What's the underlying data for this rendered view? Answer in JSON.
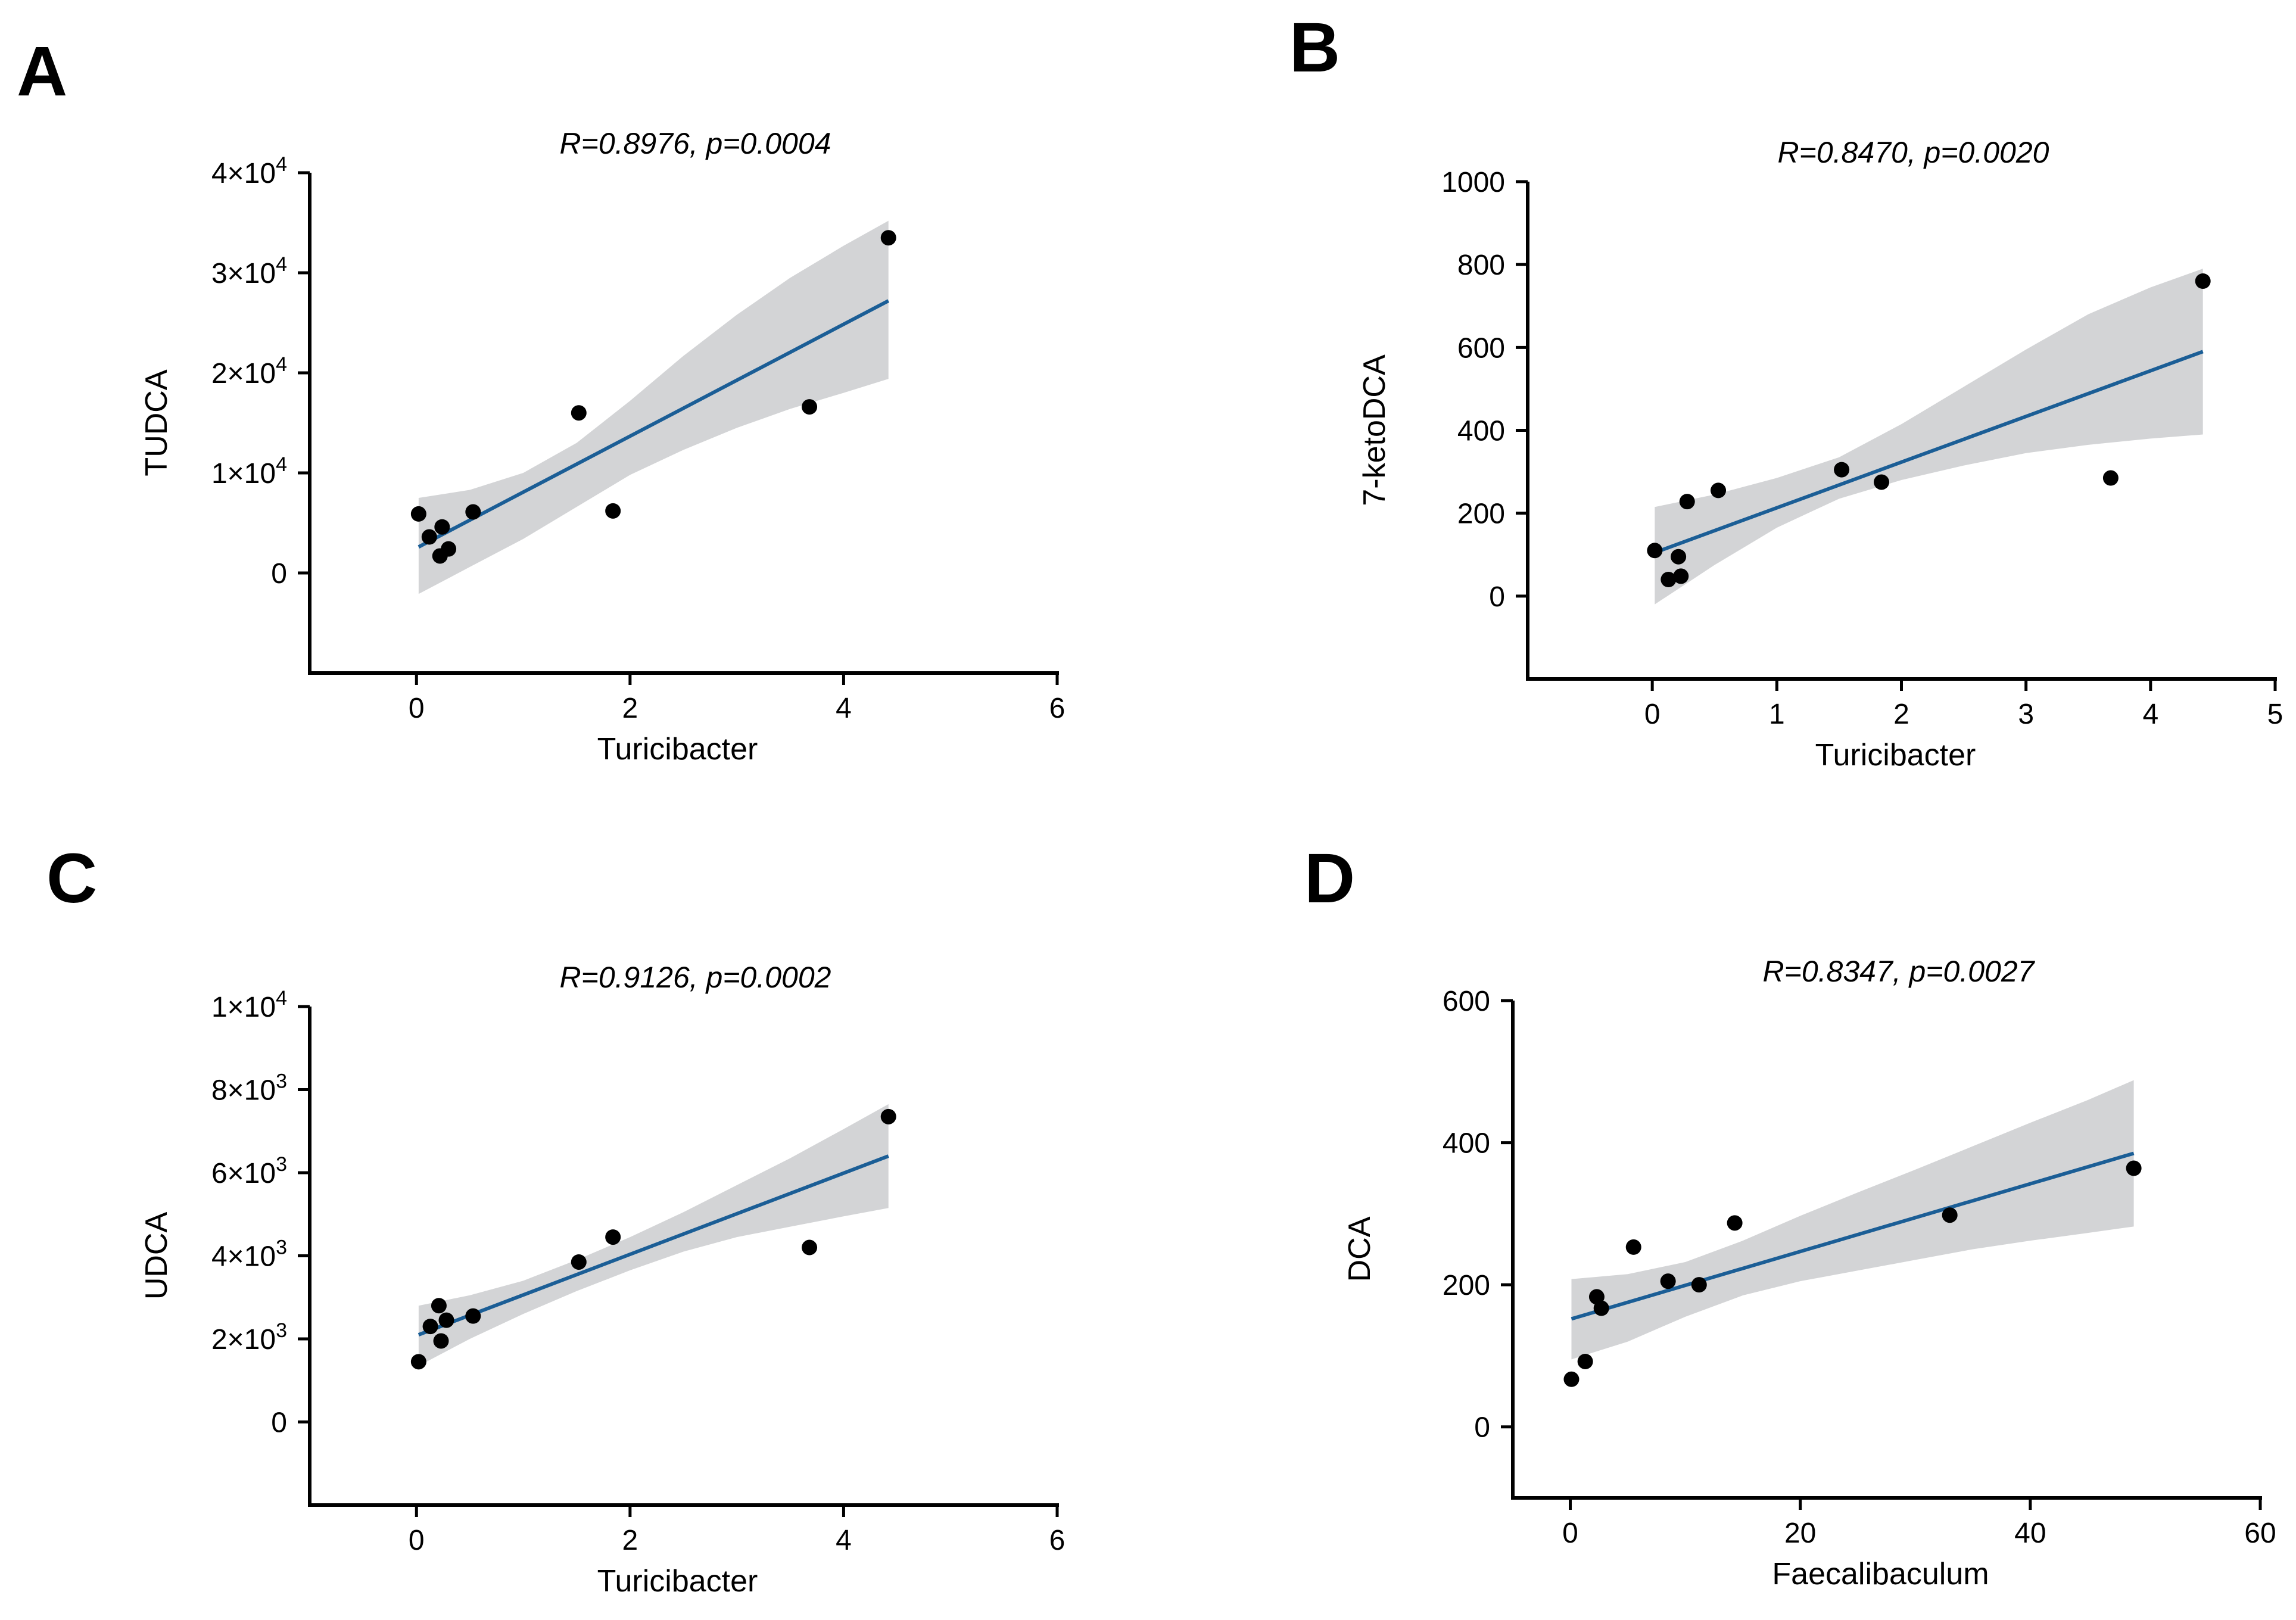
{
  "figure": {
    "panels": [
      "A",
      "B",
      "C",
      "D"
    ]
  },
  "colors": {
    "fit_line": "#1b5e96",
    "ci_band": "#d3d4d6",
    "points": "#000000",
    "axes": "#000000"
  },
  "chart_data": [
    {
      "type": "scatter",
      "panel": "A",
      "title": "R=0.8976, p=0.0004",
      "xlabel": "Turicibacter",
      "ylabel": "TUDCA",
      "xlim": [
        -1,
        6
      ],
      "ylim": [
        -10000,
        40000
      ],
      "xticks": [
        0,
        2,
        4,
        6
      ],
      "xtick_labels": [
        "0",
        "2",
        "4",
        "6"
      ],
      "yticks": [
        0,
        10000,
        20000,
        30000,
        40000
      ],
      "ytick_labels": [
        {
          "base": "0",
          "exp": ""
        },
        {
          "base": "1×10",
          "exp": "4"
        },
        {
          "base": "2×10",
          "exp": "4"
        },
        {
          "base": "3×10",
          "exp": "4"
        },
        {
          "base": "4×10",
          "exp": "4"
        }
      ],
      "points": [
        [
          0.02,
          5900
        ],
        [
          0.12,
          3600
        ],
        [
          0.22,
          1700
        ],
        [
          0.24,
          4600
        ],
        [
          0.3,
          2400
        ],
        [
          0.53,
          6100
        ],
        [
          1.52,
          16000
        ],
        [
          1.84,
          6200
        ],
        [
          3.68,
          16600
        ],
        [
          4.42,
          33500
        ]
      ],
      "fit": {
        "x": [
          0.02,
          4.42
        ],
        "y": [
          2600,
          27200
        ]
      },
      "ci": {
        "x": [
          0.02,
          0.5,
          1.0,
          1.5,
          2.0,
          2.5,
          3.0,
          3.5,
          4.0,
          4.42
        ],
        "upper": [
          7500,
          8300,
          10000,
          13000,
          17200,
          21700,
          25800,
          29500,
          32700,
          35200
        ],
        "lower": [
          -2100,
          600,
          3400,
          6600,
          9800,
          12300,
          14500,
          16400,
          18000,
          19400
        ]
      }
    },
    {
      "type": "scatter",
      "panel": "B",
      "title": "R=0.8470, p=0.0020",
      "xlabel": "Turicibacter",
      "ylabel": "7-ketoDCA",
      "xlim": [
        -1,
        5
      ],
      "ylim": [
        -200,
        1000
      ],
      "xticks": [
        0,
        1,
        2,
        3,
        4,
        5
      ],
      "xtick_labels": [
        "0",
        "1",
        "2",
        "3",
        "4",
        "5"
      ],
      "yticks": [
        0,
        200,
        400,
        600,
        800,
        1000
      ],
      "ytick_labels": [
        {
          "base": "0",
          "exp": ""
        },
        {
          "base": "200",
          "exp": ""
        },
        {
          "base": "400",
          "exp": ""
        },
        {
          "base": "600",
          "exp": ""
        },
        {
          "base": "800",
          "exp": ""
        },
        {
          "base": "1000",
          "exp": ""
        }
      ],
      "points": [
        [
          0.02,
          110
        ],
        [
          0.13,
          40
        ],
        [
          0.21,
          95
        ],
        [
          0.23,
          48
        ],
        [
          0.28,
          228
        ],
        [
          0.53,
          255
        ],
        [
          1.52,
          305
        ],
        [
          1.84,
          275
        ],
        [
          3.68,
          285
        ],
        [
          4.42,
          760
        ]
      ],
      "fit": {
        "x": [
          0.02,
          4.42
        ],
        "y": [
          105,
          590
        ]
      },
      "ci": {
        "x": [
          0.02,
          0.5,
          1.0,
          1.5,
          2.0,
          2.5,
          3.0,
          3.5,
          4.0,
          4.42
        ],
        "upper": [
          215,
          245,
          285,
          335,
          415,
          505,
          595,
          680,
          745,
          790
        ],
        "lower": [
          -20,
          75,
          165,
          235,
          280,
          315,
          345,
          365,
          380,
          390
        ]
      }
    },
    {
      "type": "scatter",
      "panel": "C",
      "title": "R=0.9126, p=0.0002",
      "xlabel": "Turicibacter",
      "ylabel": "UDCA",
      "xlim": [
        -1,
        6
      ],
      "ylim": [
        -2000,
        10000
      ],
      "xticks": [
        0,
        2,
        4,
        6
      ],
      "xtick_labels": [
        "0",
        "2",
        "4",
        "6"
      ],
      "yticks": [
        0,
        2000,
        4000,
        6000,
        8000,
        10000
      ],
      "ytick_labels": [
        {
          "base": "0",
          "exp": ""
        },
        {
          "base": "2×10",
          "exp": "3"
        },
        {
          "base": "4×10",
          "exp": "3"
        },
        {
          "base": "6×10",
          "exp": "3"
        },
        {
          "base": "8×10",
          "exp": "3"
        },
        {
          "base": "1×10",
          "exp": "4"
        }
      ],
      "points": [
        [
          0.02,
          1450
        ],
        [
          0.13,
          2300
        ],
        [
          0.21,
          2800
        ],
        [
          0.23,
          1950
        ],
        [
          0.28,
          2450
        ],
        [
          0.53,
          2550
        ],
        [
          1.52,
          3850
        ],
        [
          1.84,
          4450
        ],
        [
          3.68,
          4200
        ],
        [
          4.42,
          7350
        ]
      ],
      "fit": {
        "x": [
          0.02,
          4.42
        ],
        "y": [
          2100,
          6400
        ]
      },
      "ci": {
        "x": [
          0.02,
          0.5,
          1.0,
          1.5,
          2.0,
          2.5,
          3.0,
          3.5,
          4.0,
          4.42
        ],
        "upper": [
          2800,
          3050,
          3400,
          3900,
          4450,
          5050,
          5700,
          6350,
          7050,
          7650
        ],
        "lower": [
          1350,
          2000,
          2600,
          3150,
          3650,
          4100,
          4450,
          4700,
          4950,
          5150
        ]
      }
    },
    {
      "type": "scatter",
      "panel": "D",
      "title": "R=0.8347, p=0.0027",
      "xlabel": "Faecalibaculum",
      "ylabel": "DCA",
      "xlim": [
        -5,
        60
      ],
      "ylim": [
        -100,
        600
      ],
      "xticks": [
        0,
        20,
        40,
        60
      ],
      "xtick_labels": [
        "0",
        "20",
        "40",
        "60"
      ],
      "yticks": [
        0,
        200,
        400,
        600
      ],
      "ytick_labels": [
        {
          "base": "0",
          "exp": ""
        },
        {
          "base": "200",
          "exp": ""
        },
        {
          "base": "400",
          "exp": ""
        },
        {
          "base": "600",
          "exp": ""
        }
      ],
      "points": [
        [
          0.1,
          67
        ],
        [
          1.3,
          92
        ],
        [
          2.3,
          183
        ],
        [
          2.7,
          167
        ],
        [
          5.5,
          253
        ],
        [
          8.5,
          205
        ],
        [
          11.2,
          200
        ],
        [
          14.3,
          287
        ],
        [
          33.0,
          298
        ],
        [
          49.0,
          364
        ]
      ],
      "fit": {
        "x": [
          0.1,
          49.0
        ],
        "y": [
          152,
          385
        ]
      },
      "ci": {
        "x": [
          0.1,
          5,
          10,
          15,
          20,
          25,
          30,
          35,
          40,
          45,
          49.0
        ],
        "upper": [
          208,
          215,
          232,
          262,
          297,
          330,
          362,
          395,
          428,
          460,
          488
        ],
        "lower": [
          95,
          120,
          155,
          185,
          205,
          220,
          235,
          250,
          262,
          273,
          282
        ]
      }
    }
  ]
}
